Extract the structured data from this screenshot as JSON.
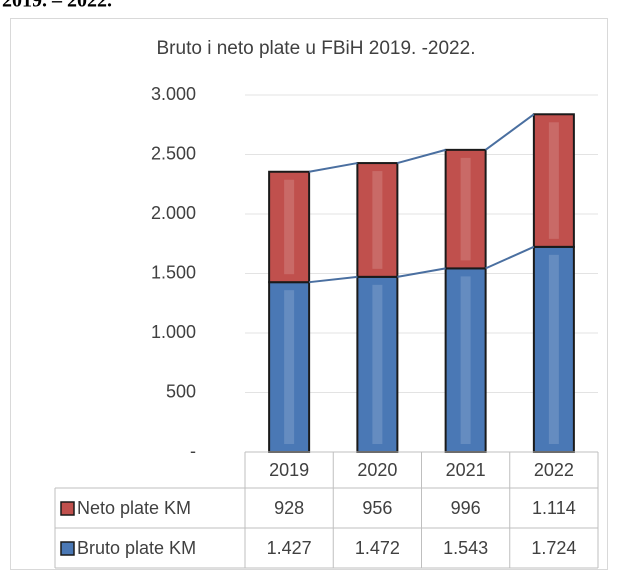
{
  "caption": "2019. – 2022.",
  "chart_data": {
    "type": "stacked_bar",
    "title": "Bruto i neto plate u FBiH 2019. -2022.",
    "categories": [
      "2019",
      "2020",
      "2021",
      "2022"
    ],
    "series": [
      {
        "name": "Bruto plate KM",
        "color": "#4a78b5",
        "values": [
          1427,
          1472,
          1543,
          1724
        ],
        "value_labels": [
          "1.427",
          "1.472",
          "1.543",
          "1.724"
        ]
      },
      {
        "name": "Neto plate KM",
        "color": "#c0504d",
        "values": [
          928,
          956,
          996,
          1114
        ],
        "value_labels": [
          "928",
          "956",
          "996",
          "1.114"
        ]
      }
    ],
    "ylim": [
      0,
      3000
    ],
    "yticks": [
      {
        "value": 0,
        "label": "-"
      },
      500,
      {
        "value": 1000,
        "label": "1.000"
      },
      {
        "value": 1500,
        "label": "1.500"
      },
      {
        "value": 2000,
        "label": "2.000"
      },
      {
        "value": 2500,
        "label": "2.500"
      },
      {
        "value": 3000,
        "label": "3.000"
      }
    ],
    "grid": true,
    "data_table": true
  }
}
